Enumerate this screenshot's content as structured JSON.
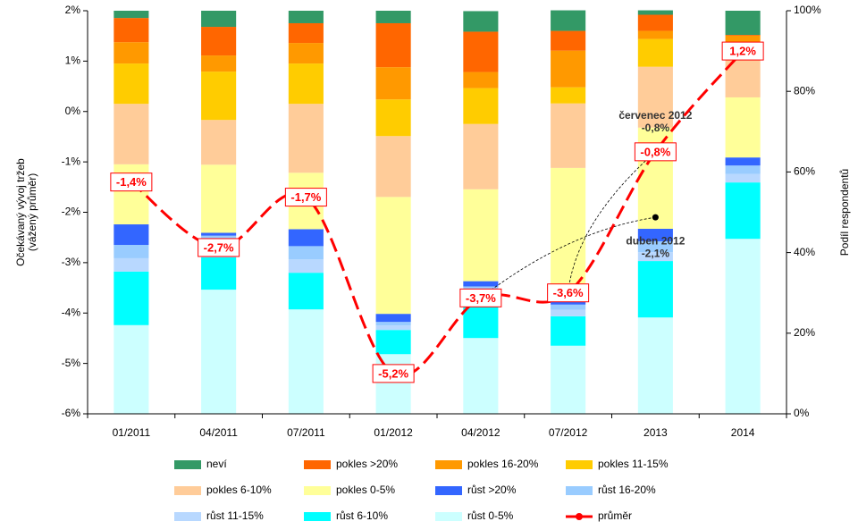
{
  "chart_data": {
    "type": "bar",
    "stacked": true,
    "categories": [
      "01/2011",
      "04/2011",
      "07/2011",
      "01/2012",
      "04/2012",
      "07/2012",
      "2013",
      "2014"
    ],
    "ylabel": [
      "Očekávaný vývoj tržeb",
      "(vážený průměr)"
    ],
    "y2label": "Podíl respondentů",
    "ylim": [
      -6,
      2
    ],
    "yticks": [
      {
        "value": -6,
        "label": "-6%"
      },
      {
        "value": -5,
        "label": "-5%"
      },
      {
        "value": -4,
        "label": "-4%"
      },
      {
        "value": -3,
        "label": "-3%"
      },
      {
        "value": -2,
        "label": "-2%"
      },
      {
        "value": -1,
        "label": "-1%"
      },
      {
        "value": 0,
        "label": "0%"
      },
      {
        "value": 1,
        "label": "1%"
      },
      {
        "value": 2,
        "label": "2%"
      }
    ],
    "y2lim": [
      0,
      100
    ],
    "y2ticks": [
      {
        "value": 0,
        "label": "0%"
      },
      {
        "value": 20,
        "label": "20%"
      },
      {
        "value": 40,
        "label": "40%"
      },
      {
        "value": 60,
        "label": "60%"
      },
      {
        "value": 80,
        "label": "80%"
      },
      {
        "value": 100,
        "label": "100%"
      }
    ],
    "series": [
      {
        "name": "neví",
        "color": "#339966",
        "axis": "y2",
        "values": [
          1.8,
          4,
          3.1,
          3.1,
          5.1,
          5.1,
          1.1,
          6
        ]
      },
      {
        "name": "pokles >20%",
        "color": "#ff6600",
        "axis": "y2",
        "values": [
          6,
          7.1,
          4.9,
          10.9,
          10,
          4.9,
          4,
          0.2
        ]
      },
      {
        "name": "pokles 16-20%",
        "color": "#ff9900",
        "axis": "y2",
        "values": [
          5.3,
          4,
          5.1,
          8,
          4,
          9.1,
          2,
          1.8
        ]
      },
      {
        "name": "pokles 11-15%",
        "color": "#ffcc00",
        "axis": "y2",
        "values": [
          10,
          12,
          10,
          9.1,
          8.9,
          4,
          6.9,
          0.4
        ]
      },
      {
        "name": "pokles 6-10%",
        "color": "#ffcc99",
        "axis": "y2",
        "values": [
          15,
          11.1,
          17.1,
          15.1,
          16.2,
          16,
          15.1,
          13.1
        ]
      },
      {
        "name": "pokles 0-5%",
        "color": "#ffff99",
        "axis": "y2",
        "values": [
          14.9,
          16.9,
          14,
          29,
          22.8,
          32.8,
          25.1,
          14.9
        ]
      },
      {
        "name": "růst >20%",
        "color": "#3366ff",
        "axis": "y2",
        "values": [
          5.1,
          0.7,
          4.2,
          2,
          1.3,
          1.1,
          3.1,
          2
        ]
      },
      {
        "name": "růst 16-20%",
        "color": "#99ccff",
        "axis": "y2",
        "values": [
          3.3,
          2.7,
          3.3,
          0.9,
          1.3,
          1.3,
          2.7,
          2.1
        ]
      },
      {
        "name": "růst 11-15%",
        "color": "#b8d8ff",
        "axis": "y2",
        "values": [
          3.3,
          2.7,
          3.3,
          1.1,
          0.9,
          1.6,
          2.2,
          2.1
        ]
      },
      {
        "name": "růst 6-10%",
        "color": "#00ffff",
        "axis": "y2",
        "values": [
          13.3,
          8,
          9.1,
          6,
          10.6,
          7.3,
          14,
          14
        ]
      },
      {
        "name": "růst 0-5%",
        "color": "#ccffff",
        "axis": "y2",
        "values": [
          22,
          30.8,
          25.9,
          14.8,
          18.8,
          16.9,
          23.9,
          43.4
        ]
      },
      {
        "name": "průměr",
        "color": "#ff0000",
        "type": "line",
        "values": [
          -1.4,
          -2.7,
          -1.7,
          -5.2,
          -3.7,
          -3.6,
          -0.8,
          1.2
        ],
        "value_labels": [
          "-1,4%",
          "-2,7%",
          "-1,7%",
          "-5,2%",
          "-3,7%",
          "-3,6%",
          "-0,8%",
          "1,2%"
        ]
      }
    ],
    "annotations": [
      {
        "text": "červenec 2012",
        "label": "-0,8%",
        "value": -0.8
      },
      {
        "text": "duben 2012",
        "label": "-2,1%",
        "value": -2.1
      }
    ]
  }
}
